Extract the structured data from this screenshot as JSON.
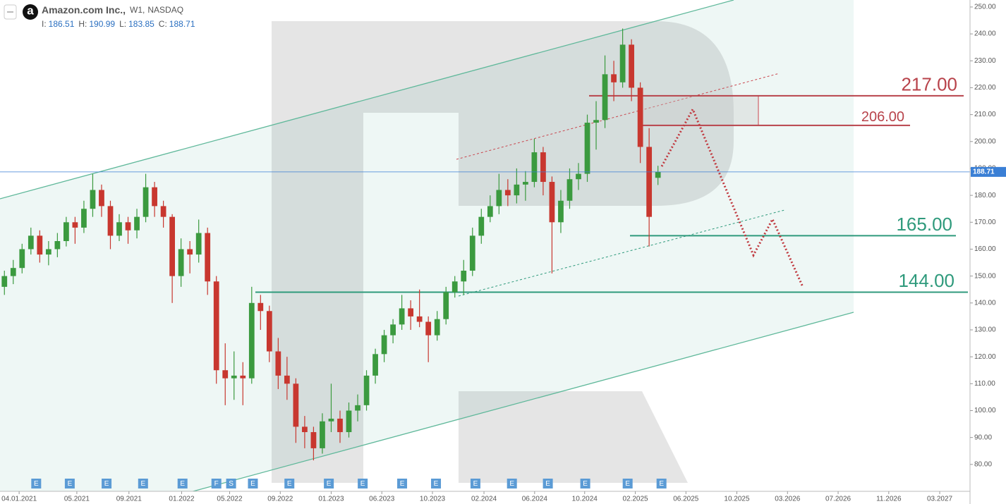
{
  "header": {
    "logo": "a",
    "name": "Amazon.com Inc.,",
    "timeframe": "W1,",
    "exchange": "NASDAQ",
    "ohlc_labels": [
      "I:",
      "H:",
      "L:",
      "C:"
    ]
  },
  "chart_data": {
    "type": "candlestick",
    "up_color": "#3b9a3f",
    "down_color": "#c8372f",
    "xlim": [
      -0.5,
      329
    ],
    "ylim": [
      70,
      252.6
    ],
    "xticks": [
      {
        "value": 6,
        "label": "04.01.2021"
      },
      {
        "value": 25.6,
        "label": "05.2021"
      },
      {
        "value": 43.3,
        "label": "09.2021"
      },
      {
        "value": 61.2,
        "label": "01.2022"
      },
      {
        "value": 77.5,
        "label": "05.2022"
      },
      {
        "value": 94.7,
        "label": "09.2022"
      },
      {
        "value": 112,
        "label": "01.2023"
      },
      {
        "value": 129.2,
        "label": "06.2023"
      },
      {
        "value": 146.4,
        "label": "10.2023"
      },
      {
        "value": 163.9,
        "label": "02.2024"
      },
      {
        "value": 181.1,
        "label": "06.2024"
      },
      {
        "value": 198.1,
        "label": "10.2024"
      },
      {
        "value": 215.3,
        "label": "02.2025"
      },
      {
        "value": 232.5,
        "label": "06.2025"
      },
      {
        "value": 249.8,
        "label": "10.2025"
      },
      {
        "value": 267,
        "label": "03.2026"
      },
      {
        "value": 284.2,
        "label": "07.2026"
      },
      {
        "value": 301.4,
        "label": "11.2026"
      },
      {
        "value": 318.7,
        "label": "03.2027"
      }
    ],
    "yticks": [
      {
        "value": 80,
        "label": "80.00"
      },
      {
        "value": 90,
        "label": "90.00"
      },
      {
        "value": 100,
        "label": "100.00"
      },
      {
        "value": 110,
        "label": "110.00"
      },
      {
        "value": 120,
        "label": "120.00"
      },
      {
        "value": 130,
        "label": "130.00"
      },
      {
        "value": 140,
        "label": "140.00"
      },
      {
        "value": 150,
        "label": "150.00"
      },
      {
        "value": 160,
        "label": "160.00"
      },
      {
        "value": 170,
        "label": "170.00"
      },
      {
        "value": 180,
        "label": "180.00"
      },
      {
        "value": 190,
        "label": "190.00"
      },
      {
        "value": 200,
        "label": "200.00"
      },
      {
        "value": 210,
        "label": "210.00"
      },
      {
        "value": 220,
        "label": "220.00"
      },
      {
        "value": 230,
        "label": "230.00"
      },
      {
        "value": 240,
        "label": "240.00"
      },
      {
        "value": 250,
        "label": "250.00"
      }
    ],
    "x": [
      1,
      4,
      7,
      10,
      13,
      16,
      19,
      22,
      25,
      28,
      31,
      34,
      37,
      40,
      43,
      46,
      49,
      52,
      55,
      58,
      61,
      64,
      67,
      70,
      73,
      76,
      79,
      82,
      85,
      88,
      91,
      94,
      97,
      100,
      103,
      106,
      109,
      112,
      115,
      118,
      121,
      124,
      127,
      130,
      133,
      136,
      139,
      142,
      145,
      148,
      151,
      154,
      157,
      160,
      163,
      166,
      169,
      172,
      175,
      178,
      181,
      184,
      187,
      190,
      193,
      196,
      199,
      202,
      205,
      208,
      211,
      214,
      217,
      220,
      223
    ],
    "candles": [
      [
        146,
        152,
        143,
        150
      ],
      [
        150,
        156,
        147,
        153
      ],
      [
        153,
        162,
        151,
        160
      ],
      [
        160,
        168,
        158,
        165
      ],
      [
        165,
        167,
        155,
        158
      ],
      [
        158,
        163,
        154,
        160
      ],
      [
        160,
        166,
        157,
        163
      ],
      [
        163,
        172,
        161,
        170
      ],
      [
        170,
        172,
        162,
        168
      ],
      [
        168,
        178,
        166,
        175
      ],
      [
        175,
        188,
        172,
        182
      ],
      [
        182,
        184,
        172,
        176
      ],
      [
        176,
        178,
        160,
        165
      ],
      [
        165,
        173,
        163,
        170
      ],
      [
        170,
        172,
        162,
        167
      ],
      [
        167,
        175,
        164,
        172
      ],
      [
        172,
        188,
        170,
        183
      ],
      [
        183,
        185,
        172,
        176
      ],
      [
        176,
        178,
        168,
        172
      ],
      [
        172,
        173,
        140,
        150
      ],
      [
        150,
        164,
        146,
        160
      ],
      [
        160,
        163,
        151,
        158
      ],
      [
        158,
        171,
        155,
        166
      ],
      [
        166,
        168,
        143,
        148
      ],
      [
        148,
        150,
        110,
        115
      ],
      [
        115,
        125,
        102,
        112
      ],
      [
        112,
        122,
        104,
        113
      ],
      [
        113,
        118,
        102,
        112
      ],
      [
        112,
        146,
        110,
        140
      ],
      [
        140,
        143,
        130,
        137
      ],
      [
        137,
        139,
        118,
        122
      ],
      [
        122,
        127,
        108,
        113
      ],
      [
        113,
        120,
        104,
        110
      ],
      [
        110,
        112,
        88,
        94
      ],
      [
        94,
        98,
        86,
        92
      ],
      [
        92,
        94,
        81.5,
        86
      ],
      [
        86,
        99,
        84,
        96
      ],
      [
        96,
        110,
        92,
        97
      ],
      [
        97,
        100,
        88,
        92
      ],
      [
        92,
        103,
        90,
        100
      ],
      [
        100,
        106,
        96,
        102
      ],
      [
        102,
        115,
        100,
        113
      ],
      [
        113,
        123,
        110,
        121
      ],
      [
        121,
        130,
        118,
        128
      ],
      [
        128,
        134,
        125,
        132
      ],
      [
        132,
        143,
        130,
        138
      ],
      [
        138,
        141,
        130,
        135
      ],
      [
        135,
        145,
        131,
        133
      ],
      [
        133,
        135,
        118,
        128
      ],
      [
        128,
        137,
        126,
        134
      ],
      [
        134,
        146,
        132,
        144
      ],
      [
        144,
        150,
        142,
        148
      ],
      [
        148,
        156,
        143,
        152
      ],
      [
        152,
        168,
        150,
        165
      ],
      [
        165,
        175,
        162,
        172
      ],
      [
        172,
        180,
        170,
        176
      ],
      [
        176,
        188,
        173,
        182
      ],
      [
        182,
        186,
        176,
        180
      ],
      [
        180,
        190,
        177,
        184
      ],
      [
        184,
        189,
        178,
        185
      ],
      [
        185,
        201,
        183,
        196
      ],
      [
        196,
        198,
        180,
        185
      ],
      [
        185,
        187,
        151,
        170
      ],
      [
        170,
        182,
        166,
        178
      ],
      [
        178,
        190,
        175,
        186
      ],
      [
        186,
        192,
        182,
        188
      ],
      [
        188,
        210,
        185,
        207
      ],
      [
        207,
        215,
        197,
        208
      ],
      [
        208,
        232,
        205,
        225
      ],
      [
        225,
        230,
        215,
        222
      ],
      [
        222,
        242,
        220,
        236
      ],
      [
        236,
        238,
        215,
        220
      ],
      [
        220,
        222,
        192,
        198
      ],
      [
        198,
        205,
        161,
        172
      ],
      [
        186.51,
        190.99,
        183.85,
        188.71
      ]
    ],
    "levels": [
      {
        "value": 217,
        "label": "217.00",
        "color": "#b8434b"
      },
      {
        "value": 206,
        "label": "206.00",
        "color": "#b8434b"
      },
      {
        "value": 165,
        "label": "165.00",
        "color": "#2f9a7c"
      },
      {
        "value": 144,
        "label": "144.00",
        "color": "#2f9a7c"
      }
    ],
    "last_price_color": "#3a7fd5",
    "events": [
      {
        "x": 11.8,
        "label": "E"
      },
      {
        "x": 23.2,
        "label": "E"
      },
      {
        "x": 35.7,
        "label": "E"
      },
      {
        "x": 48.1,
        "label": "E"
      },
      {
        "x": 61.5,
        "label": "E"
      },
      {
        "x": 73,
        "label": "F"
      },
      {
        "x": 78,
        "label": "S"
      },
      {
        "x": 85.4,
        "label": "E"
      },
      {
        "x": 97.8,
        "label": "E"
      },
      {
        "x": 111.2,
        "label": "E"
      },
      {
        "x": 122.7,
        "label": "E"
      },
      {
        "x": 136.1,
        "label": "E"
      },
      {
        "x": 147.6,
        "label": "E"
      },
      {
        "x": 161,
        "label": "E"
      },
      {
        "x": 173.4,
        "label": "E"
      },
      {
        "x": 185.6,
        "label": "E"
      },
      {
        "x": 198.3,
        "label": "E"
      },
      {
        "x": 212.7,
        "label": "E"
      },
      {
        "x": 224.2,
        "label": "E"
      }
    ]
  }
}
